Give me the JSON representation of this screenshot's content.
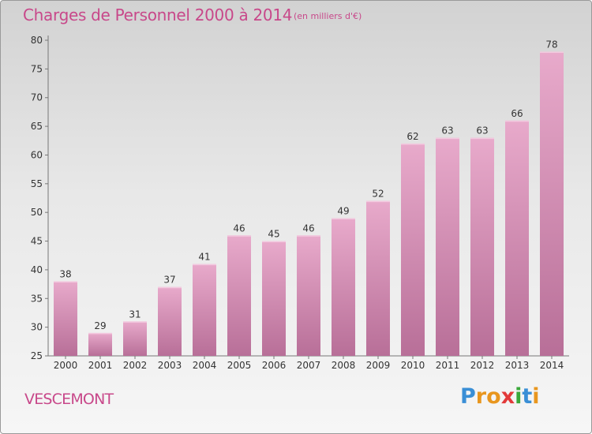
{
  "header": {
    "title": "Charges de Personnel 2000 à 2014",
    "unit_note": "(en milliers d'€)"
  },
  "footer": {
    "commune": "VESCEMONT",
    "logo": {
      "letters": [
        "P",
        "r",
        "o",
        "x",
        "i",
        "t",
        "i"
      ],
      "colors": [
        "#3a8fd6",
        "#e8961e",
        "#e8961e",
        "#e23a3a",
        "#3aa83a",
        "#3a8fd6",
        "#e8961e"
      ]
    }
  },
  "colors": {
    "bar_light": "#e8aacb",
    "bar_dark": "#b86f98",
    "accent": "#c8488a"
  },
  "chart_data": {
    "type": "bar",
    "title": "Charges de Personnel 2000 à 2014",
    "subtitle": "(en milliers d'€)",
    "categories": [
      "2000",
      "2001",
      "2002",
      "2003",
      "2004",
      "2005",
      "2006",
      "2007",
      "2008",
      "2009",
      "2010",
      "2011",
      "2012",
      "2013",
      "2014"
    ],
    "values": [
      38,
      29,
      31,
      37,
      41,
      46,
      45,
      46,
      49,
      52,
      62,
      63,
      63,
      66,
      78
    ],
    "ylim": [
      25,
      80
    ],
    "yticks": [
      25,
      30,
      35,
      40,
      45,
      50,
      55,
      60,
      65,
      70,
      75,
      80
    ],
    "grid": false,
    "data_labels": true
  }
}
